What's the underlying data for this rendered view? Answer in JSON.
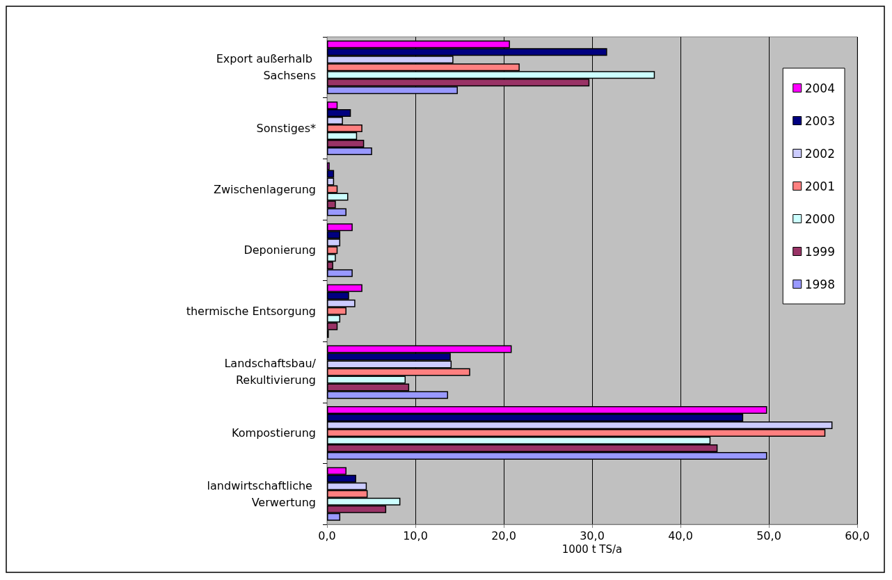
{
  "chart_data": {
    "type": "bar",
    "orientation": "horizontal",
    "xlabel": "1000 t TS/a",
    "categories": [
      "Export außerhalb Sachsens",
      "Sonstiges*",
      "Zwischenlagerung",
      "Deponierung",
      "thermische Entsorgung",
      "Landschaftsbau/Rekultivierung",
      "Kompostierung",
      "landwirtschaftliche Verwertung"
    ],
    "series": [
      {
        "name": "2004",
        "color": "#ff00ff",
        "values": [
          20.7,
          1.2,
          0.3,
          2.9,
          4.0,
          20.9,
          49.8,
          2.2
        ]
      },
      {
        "name": "2003",
        "color": "#000080",
        "values": [
          31.7,
          2.7,
          0.8,
          1.5,
          2.5,
          14.0,
          47.1,
          3.3
        ]
      },
      {
        "name": "2002",
        "color": "#ccccff",
        "values": [
          14.3,
          1.8,
          0.8,
          1.5,
          3.2,
          14.1,
          57.2,
          4.5
        ]
      },
      {
        "name": "2001",
        "color": "#ff8080",
        "values": [
          21.8,
          4.0,
          1.2,
          1.2,
          2.2,
          16.2,
          56.4,
          4.6
        ]
      },
      {
        "name": "2000",
        "color": "#ccffff",
        "values": [
          37.1,
          3.4,
          2.4,
          1.0,
          1.5,
          8.9,
          43.4,
          8.3
        ]
      },
      {
        "name": "1999",
        "color": "#993366",
        "values": [
          29.7,
          4.2,
          1.0,
          0.7,
          1.2,
          9.3,
          44.2,
          6.7
        ]
      },
      {
        "name": "1998",
        "color": "#9999ff",
        "values": [
          14.8,
          5.1,
          2.2,
          2.9,
          0.2,
          13.7,
          49.8,
          1.5
        ]
      }
    ],
    "xlim": [
      0,
      60
    ],
    "xticks": [
      {
        "value": 0,
        "label": "0,0"
      },
      {
        "value": 10,
        "label": "10,0"
      },
      {
        "value": 20,
        "label": "20,0"
      },
      {
        "value": 30,
        "label": "30,0"
      },
      {
        "value": 40,
        "label": "40,0"
      },
      {
        "value": 50,
        "label": "50,0"
      },
      {
        "value": 60,
        "label": "60,0"
      }
    ],
    "grid": "x",
    "legend": "top right"
  }
}
